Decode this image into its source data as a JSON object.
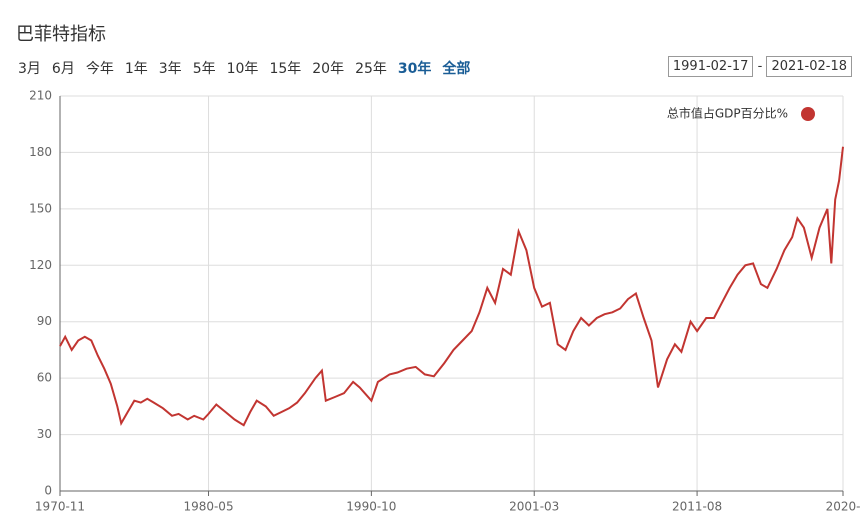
{
  "header": {
    "title": "巴菲特指标"
  },
  "range_buttons": [
    "3月",
    "6月",
    "今年",
    "1年",
    "3年",
    "5年",
    "10年",
    "15年",
    "20年",
    "25年",
    "30年",
    "全部"
  ],
  "date_range": {
    "from": "1991-02-17",
    "separator": "-",
    "to": "2021-02-18"
  },
  "chart_data": {
    "type": "line",
    "x": [
      "1970-11",
      "1971-03",
      "1971-08",
      "1972-01",
      "1972-06",
      "1972-11",
      "1973-04",
      "1973-09",
      "1974-02",
      "1974-07",
      "1974-10",
      "1975-03",
      "1975-08",
      "1976-01",
      "1976-06",
      "1976-11",
      "1977-06",
      "1978-01",
      "1978-06",
      "1979-01",
      "1979-06",
      "1980-01",
      "1980-05",
      "1980-11",
      "1981-06",
      "1982-01",
      "1982-08",
      "1983-01",
      "1983-06",
      "1984-01",
      "1984-07",
      "1985-01",
      "1985-07",
      "1986-01",
      "1986-07",
      "1987-03",
      "1987-08",
      "1987-11",
      "1988-06",
      "1989-01",
      "1989-08",
      "1990-01",
      "1990-10",
      "1991-03",
      "1991-12",
      "1992-06",
      "1993-01",
      "1993-08",
      "1994-03",
      "1994-10",
      "1995-06",
      "1996-01",
      "1996-08",
      "1997-03",
      "1997-09",
      "1998-03",
      "1998-09",
      "1999-03",
      "1999-09",
      "2000-03",
      "2000-09",
      "2001-03",
      "2001-09",
      "2002-03",
      "2002-09",
      "2003-03",
      "2003-09",
      "2004-03",
      "2004-09",
      "2005-03",
      "2005-09",
      "2006-03",
      "2006-09",
      "2007-03",
      "2007-09",
      "2008-03",
      "2008-09",
      "2009-02",
      "2009-09",
      "2010-03",
      "2010-08",
      "2011-03",
      "2011-08",
      "2012-03",
      "2012-09",
      "2013-03",
      "2013-09",
      "2014-03",
      "2014-09",
      "2015-03",
      "2015-09",
      "2016-02",
      "2016-09",
      "2017-03",
      "2017-09",
      "2018-01",
      "2018-06",
      "2018-12",
      "2019-06",
      "2019-12",
      "2020-03",
      "2020-06",
      "2020-09",
      "2020-12"
    ],
    "series": [
      {
        "name": "总市值占GDP百分比%",
        "color": "#c23531",
        "values": [
          77,
          82,
          75,
          80,
          82,
          80,
          72,
          65,
          57,
          45,
          36,
          42,
          48,
          47,
          49,
          47,
          44,
          40,
          41,
          38,
          40,
          38,
          41,
          46,
          42,
          38,
          35,
          42,
          48,
          45,
          40,
          42,
          44,
          47,
          52,
          60,
          64,
          48,
          50,
          52,
          58,
          55,
          48,
          58,
          62,
          63,
          65,
          66,
          62,
          61,
          68,
          75,
          80,
          85,
          95,
          108,
          100,
          118,
          115,
          138,
          128,
          108,
          98,
          100,
          78,
          75,
          85,
          92,
          88,
          92,
          94,
          95,
          97,
          102,
          105,
          92,
          80,
          55,
          70,
          78,
          74,
          90,
          85,
          92,
          92,
          100,
          108,
          115,
          120,
          121,
          110,
          108,
          118,
          128,
          135,
          145,
          140,
          124,
          140,
          150,
          121,
          155,
          165,
          183
        ]
      }
    ],
    "ylim": [
      0,
      210
    ],
    "yticks": [
      0,
      30,
      60,
      90,
      120,
      150,
      180,
      210
    ],
    "xticks": [
      "1970-11",
      "1980-05",
      "1990-10",
      "2001-03",
      "2011-08",
      "2020-"
    ],
    "grid": true
  }
}
